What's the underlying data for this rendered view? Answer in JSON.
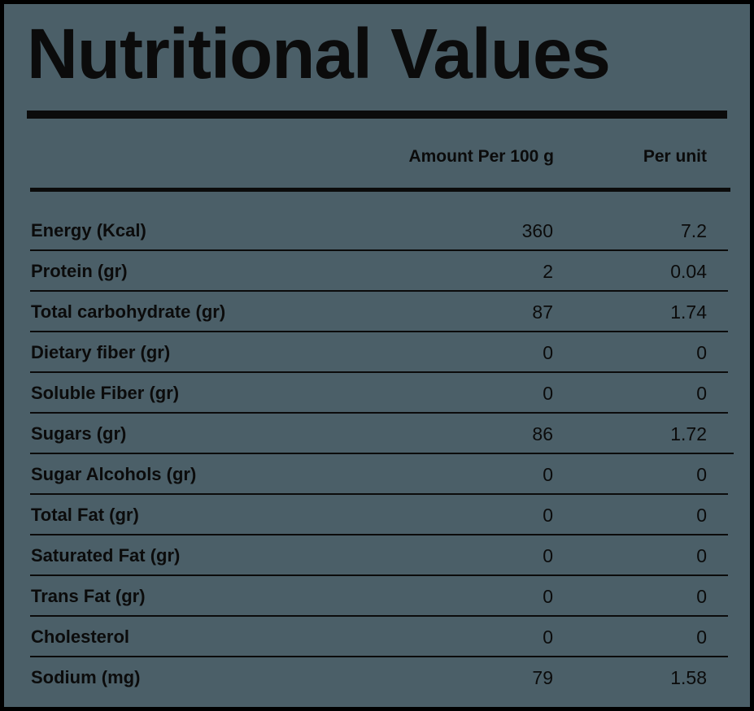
{
  "title": "Nutritional Values",
  "columns": {
    "per_100g": "Amount Per 100 g",
    "per_unit": "Per unit"
  },
  "rows": [
    {
      "label": "Energy (Kcal)",
      "per_100g": "360",
      "per_unit": "7.2"
    },
    {
      "label": "Protein (gr)",
      "per_100g": "2",
      "per_unit": "0.04"
    },
    {
      "label": "Total carbohydrate (gr)",
      "per_100g": "87",
      "per_unit": "1.74"
    },
    {
      "label": "Dietary fiber (gr)",
      "per_100g": "0",
      "per_unit": "0"
    },
    {
      "label": "Soluble Fiber (gr)",
      "per_100g": "0",
      "per_unit": "0"
    },
    {
      "label": "Sugars (gr)",
      "per_100g": "86",
      "per_unit": "1.72"
    },
    {
      "label": "Sugar Alcohols (gr)",
      "per_100g": "0",
      "per_unit": "0"
    },
    {
      "label": "Total Fat (gr)",
      "per_100g": "0",
      "per_unit": "0"
    },
    {
      "label": "Saturated Fat (gr)",
      "per_100g": "0",
      "per_unit": "0"
    },
    {
      "label": "Trans Fat (gr)",
      "per_100g": "0",
      "per_unit": "0"
    },
    {
      "label": "Cholesterol",
      "per_100g": "0",
      "per_unit": "0"
    },
    {
      "label": "Sodium (mg)",
      "per_100g": "79",
      "per_unit": "1.58"
    }
  ],
  "colors": {
    "background": "#4b5f68",
    "border": "#000000",
    "text": "#0b0b0b"
  }
}
